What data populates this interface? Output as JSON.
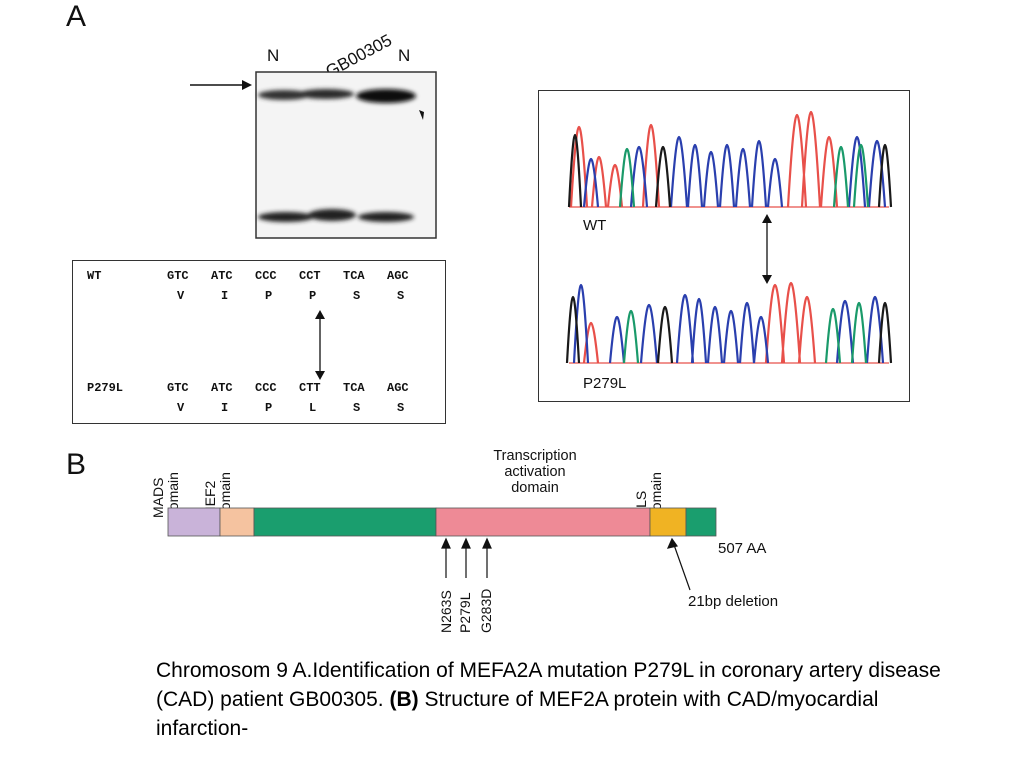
{
  "panel_a_label": "A",
  "panel_b_label": "B",
  "gel": {
    "lanes": [
      "N",
      "GB00305",
      "N"
    ]
  },
  "sequence": {
    "wt_label": "WT",
    "wt_codons": [
      "GTC",
      "ATC",
      "CCC",
      "CCT",
      "TCA",
      "AGC"
    ],
    "wt_aa": [
      "V",
      "I",
      "P",
      "P",
      "S",
      "S"
    ],
    "mut_label": "P279L",
    "mut_codons": [
      "GTC",
      "ATC",
      "CCC",
      "CTT",
      "TCA",
      "AGC"
    ],
    "mut_aa": [
      "V",
      "I",
      "P",
      "L",
      "S",
      "S"
    ]
  },
  "chromatogram": {
    "wt_label": "WT",
    "mut_label": "P279L",
    "colors": {
      "red": "#e8504a",
      "blue": "#2a3fae",
      "green": "#1a9a6a",
      "black": "#1a1a1a"
    }
  },
  "protein": {
    "domains": [
      "MADS domain",
      "MEF2 domain",
      "Transcription activation domain",
      "NLS domain"
    ],
    "mads_lines": [
      "MADS",
      "domain"
    ],
    "mef2_lines": [
      "MEF2",
      "domain"
    ],
    "tad_lines": [
      "Transcription",
      "activation",
      "domain"
    ],
    "nls_lines": [
      "NLS",
      "domain"
    ],
    "length_label": "507 AA",
    "mutations": [
      "N263S",
      "P279L",
      "G283D"
    ],
    "deletion_label": "21bp deletion",
    "colors": {
      "mads": "#c9b3d9",
      "mef2": "#f5c3a0",
      "green": "#1a9e6e",
      "pink": "#ee8a96",
      "nls": "#f0b323"
    }
  },
  "caption": {
    "part1": "Chromosom 9 A.Identification of MEFA2A mutation P279L in coronary artery disease (CAD) patient GB00305. ",
    "bold": "(B)",
    "part2": " Structure of MEF2A protein with CAD/myocardial infarction-"
  }
}
